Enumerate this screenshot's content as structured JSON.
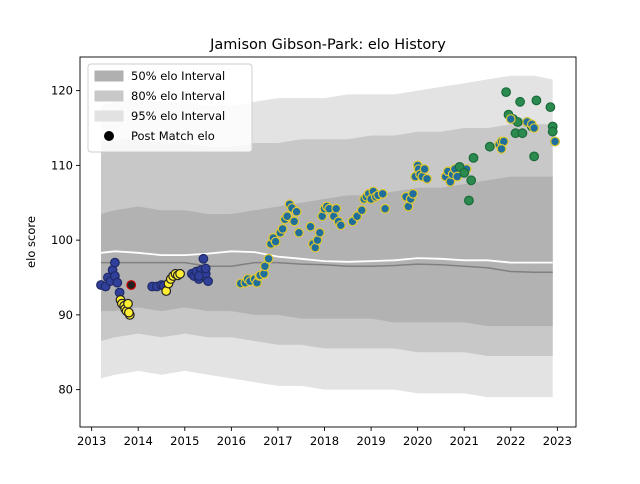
{
  "chart_data": {
    "type": "scatter",
    "title": "Jamison Gibson-Park: elo History",
    "xlabel": "",
    "ylabel": "elo score",
    "xlim": [
      2012.75,
      2023.4
    ],
    "ylim": [
      75,
      124.5
    ],
    "x_ticks": [
      2013,
      2014,
      2015,
      2016,
      2017,
      2018,
      2019,
      2020,
      2021,
      2022,
      2023
    ],
    "y_ticks": [
      80,
      90,
      100,
      110,
      120
    ],
    "grid": false,
    "legend_position": "upper-left",
    "legend": [
      {
        "label": "50% elo Interval",
        "kind": "band",
        "color": "#b0b0b0"
      },
      {
        "label": "80% elo Interval",
        "kind": "band",
        "color": "#c8c8c8"
      },
      {
        "label": "95% elo Interval",
        "kind": "band",
        "color": "#e2e2e2"
      },
      {
        "label": "Post Match elo",
        "kind": "marker",
        "color": "#000000"
      }
    ],
    "colors": {
      "band_95": "#e3e3e3",
      "band_80": "#c8c8c8",
      "band_50": "#b2b2b2",
      "median_line": "#808080",
      "mean_line": "#ffffff"
    },
    "bands": {
      "x": [
        2013.2,
        2013.5,
        2014.0,
        2014.5,
        2015.0,
        2015.5,
        2016.0,
        2016.5,
        2017.0,
        2017.5,
        2018.0,
        2018.5,
        2019.0,
        2019.5,
        2020.0,
        2020.5,
        2021.0,
        2021.5,
        2022.0,
        2022.5,
        2022.9
      ],
      "p95_low": [
        81.5,
        82.0,
        82.5,
        82.0,
        82.5,
        82.0,
        81.5,
        81.0,
        80.5,
        80.5,
        80.0,
        80.0,
        80.0,
        80.0,
        79.5,
        79.5,
        79.5,
        79.0,
        79.0,
        79.0,
        79.0
      ],
      "p95_high": [
        118.0,
        118.5,
        119.0,
        118.5,
        118.5,
        118.0,
        118.0,
        118.5,
        119.0,
        119.0,
        119.0,
        119.5,
        119.5,
        119.5,
        120.0,
        120.5,
        121.0,
        121.5,
        122.0,
        122.0,
        121.5
      ],
      "p80_low": [
        86.5,
        87.0,
        87.5,
        87.0,
        87.5,
        87.0,
        87.0,
        86.5,
        86.0,
        86.0,
        85.5,
        85.5,
        85.5,
        85.5,
        85.0,
        85.0,
        85.0,
        84.5,
        84.5,
        84.5,
        84.5
      ],
      "p80_high": [
        113.0,
        113.5,
        113.5,
        113.0,
        113.0,
        112.5,
        112.5,
        113.0,
        113.0,
        113.5,
        113.5,
        113.5,
        114.0,
        114.0,
        114.5,
        114.5,
        115.0,
        115.0,
        115.5,
        115.5,
        115.5
      ],
      "p50_low": [
        90.5,
        90.5,
        91.0,
        90.5,
        91.0,
        90.5,
        90.5,
        90.0,
        90.0,
        89.5,
        89.5,
        89.5,
        89.5,
        89.0,
        89.0,
        89.0,
        89.0,
        88.5,
        88.5,
        88.5,
        88.5
      ],
      "p50_high": [
        103.5,
        104.0,
        104.5,
        104.0,
        104.0,
        103.5,
        103.5,
        104.0,
        104.5,
        105.0,
        105.5,
        106.0,
        106.0,
        106.5,
        107.0,
        107.0,
        107.5,
        108.0,
        108.5,
        108.5,
        108.5
      ],
      "median": [
        97.0,
        97.0,
        97.0,
        97.0,
        97.0,
        96.5,
        96.5,
        97.0,
        97.0,
        96.8,
        96.7,
        96.5,
        96.5,
        96.6,
        96.8,
        96.7,
        96.5,
        96.3,
        95.8,
        95.7,
        95.7
      ],
      "mean": [
        98.3,
        98.5,
        98.3,
        98.0,
        98.0,
        98.2,
        98.5,
        98.4,
        97.8,
        97.5,
        97.2,
        97.1,
        97.2,
        97.3,
        97.6,
        97.5,
        97.3,
        97.3,
        97.0,
        97.0,
        97.0
      ]
    },
    "series": [
      {
        "marker_color": "#2f3f9a",
        "edge_color": "#1f2a66",
        "points": [
          [
            2013.2,
            94.0
          ],
          [
            2013.3,
            93.8
          ],
          [
            2013.35,
            95.0
          ],
          [
            2013.4,
            94.5
          ],
          [
            2013.45,
            96.0
          ],
          [
            2013.5,
            95.2
          ],
          [
            2013.55,
            94.3
          ],
          [
            2013.5,
            97.0
          ],
          [
            2013.6,
            93.0
          ]
        ]
      },
      {
        "marker_color": "#222222",
        "edge_color": "#cc0000",
        "points": [
          [
            2013.85,
            94.0
          ]
        ]
      },
      {
        "marker_color": "#ffee33",
        "edge_color": "#222222",
        "points": [
          [
            2013.62,
            92.0
          ],
          [
            2013.65,
            91.5
          ],
          [
            2013.7,
            91.2
          ],
          [
            2013.72,
            90.8
          ],
          [
            2013.75,
            90.5
          ],
          [
            2013.78,
            91.5
          ],
          [
            2013.82,
            90.0
          ],
          [
            2013.8,
            90.3
          ]
        ]
      },
      {
        "marker_color": "#2f3f9a",
        "edge_color": "#1f2a66",
        "points": [
          [
            2014.3,
            93.8
          ],
          [
            2014.4,
            93.8
          ],
          [
            2014.5,
            94.0
          ],
          [
            2014.55,
            93.9
          ]
        ]
      },
      {
        "marker_color": "#ffee33",
        "edge_color": "#222222",
        "points": [
          [
            2014.6,
            93.2
          ],
          [
            2014.65,
            94.2
          ],
          [
            2014.7,
            94.8
          ],
          [
            2014.75,
            95.2
          ],
          [
            2014.8,
            95.5
          ],
          [
            2014.85,
            95.3
          ],
          [
            2014.9,
            95.5
          ]
        ]
      },
      {
        "marker_color": "#2f3f9a",
        "edge_color": "#1f2a66",
        "points": [
          [
            2015.15,
            95.5
          ],
          [
            2015.2,
            95.2
          ],
          [
            2015.25,
            95.8
          ],
          [
            2015.3,
            94.8
          ],
          [
            2015.35,
            96.0
          ],
          [
            2015.4,
            97.5
          ],
          [
            2015.45,
            95.5
          ],
          [
            2015.5,
            94.5
          ],
          [
            2015.3,
            95.2
          ],
          [
            2015.45,
            96.2
          ]
        ]
      },
      {
        "marker_color": "#1f6e9c",
        "edge_color": "#e0c830",
        "points": [
          [
            2016.2,
            94.2
          ],
          [
            2016.3,
            94.3
          ],
          [
            2016.35,
            94.8
          ],
          [
            2016.4,
            94.5
          ],
          [
            2016.5,
            94.8
          ],
          [
            2016.55,
            94.3
          ],
          [
            2016.6,
            95.2
          ],
          [
            2016.62,
            95.3
          ],
          [
            2016.7,
            95.5
          ],
          [
            2016.72,
            96.5
          ],
          [
            2016.8,
            97.5
          ],
          [
            2016.85,
            99.5
          ],
          [
            2016.9,
            100.3
          ],
          [
            2016.95,
            99.8
          ],
          [
            2017.05,
            101.0
          ],
          [
            2017.1,
            101.5
          ],
          [
            2017.15,
            102.8
          ],
          [
            2017.2,
            103.2
          ],
          [
            2017.25,
            104.8
          ],
          [
            2017.3,
            104.3
          ],
          [
            2017.35,
            102.5
          ],
          [
            2017.4,
            103.8
          ],
          [
            2017.45,
            101.0
          ],
          [
            2017.7,
            101.8
          ],
          [
            2017.75,
            99.5
          ],
          [
            2017.8,
            99.0
          ],
          [
            2017.85,
            100.0
          ],
          [
            2017.9,
            101.0
          ],
          [
            2017.95,
            103.2
          ],
          [
            2018.0,
            104.2
          ],
          [
            2018.05,
            104.5
          ],
          [
            2018.1,
            104.2
          ],
          [
            2018.2,
            103.2
          ],
          [
            2018.25,
            104.2
          ],
          [
            2018.3,
            102.5
          ],
          [
            2018.35,
            102.0
          ],
          [
            2018.6,
            102.5
          ],
          [
            2018.7,
            103.2
          ],
          [
            2018.8,
            104.0
          ],
          [
            2018.85,
            105.5
          ],
          [
            2018.9,
            105.8
          ],
          [
            2018.95,
            106.2
          ],
          [
            2019.0,
            105.5
          ],
          [
            2019.05,
            106.5
          ],
          [
            2019.1,
            105.8
          ],
          [
            2019.15,
            106.0
          ],
          [
            2019.25,
            106.2
          ],
          [
            2019.3,
            104.2
          ],
          [
            2019.75,
            105.8
          ],
          [
            2019.8,
            104.5
          ],
          [
            2019.85,
            105.5
          ],
          [
            2019.9,
            106.2
          ],
          [
            2019.95,
            108.5
          ],
          [
            2020.0,
            110.0
          ],
          [
            2020.02,
            109.5
          ],
          [
            2020.05,
            108.8
          ],
          [
            2020.1,
            108.5
          ],
          [
            2020.15,
            109.5
          ],
          [
            2020.2,
            108.2
          ],
          [
            2020.6,
            108.5
          ],
          [
            2020.65,
            109.2
          ],
          [
            2020.7,
            107.8
          ],
          [
            2020.75,
            108.8
          ],
          [
            2020.8,
            109.5
          ],
          [
            2020.85,
            108.5
          ],
          [
            2021.0,
            109.2
          ],
          [
            2021.05,
            109.5
          ],
          [
            2021.75,
            112.8
          ],
          [
            2021.8,
            113.2
          ],
          [
            2021.85,
            113.2
          ],
          [
            2021.8,
            112.2
          ]
        ]
      },
      {
        "marker_color": "#2a8a50",
        "edge_color": "#1a6a38",
        "points": [
          [
            2020.9,
            109.8
          ],
          [
            2021.0,
            109.0
          ],
          [
            2021.1,
            105.3
          ],
          [
            2021.15,
            108.0
          ],
          [
            2021.2,
            111.0
          ],
          [
            2021.55,
            112.5
          ],
          [
            2021.9,
            119.8
          ],
          [
            2021.95,
            116.8
          ],
          [
            2022.05,
            116.2
          ],
          [
            2022.1,
            114.3
          ],
          [
            2022.15,
            115.8
          ],
          [
            2022.2,
            118.5
          ],
          [
            2022.25,
            114.3
          ],
          [
            2022.35,
            115.8
          ],
          [
            2022.45,
            115.2
          ],
          [
            2022.5,
            111.2
          ],
          [
            2022.55,
            118.7
          ],
          [
            2022.85,
            117.8
          ],
          [
            2022.9,
            115.2
          ],
          [
            2022.9,
            114.5
          ],
          [
            2022.95,
            113.2
          ]
        ]
      },
      {
        "marker_color": "#1f6e9c",
        "edge_color": "#e0c830",
        "points": [
          [
            2022.0,
            116.2
          ],
          [
            2022.35,
            115.8
          ],
          [
            2022.45,
            115.5
          ],
          [
            2022.5,
            115.0
          ],
          [
            2022.95,
            113.2
          ]
        ]
      }
    ]
  }
}
